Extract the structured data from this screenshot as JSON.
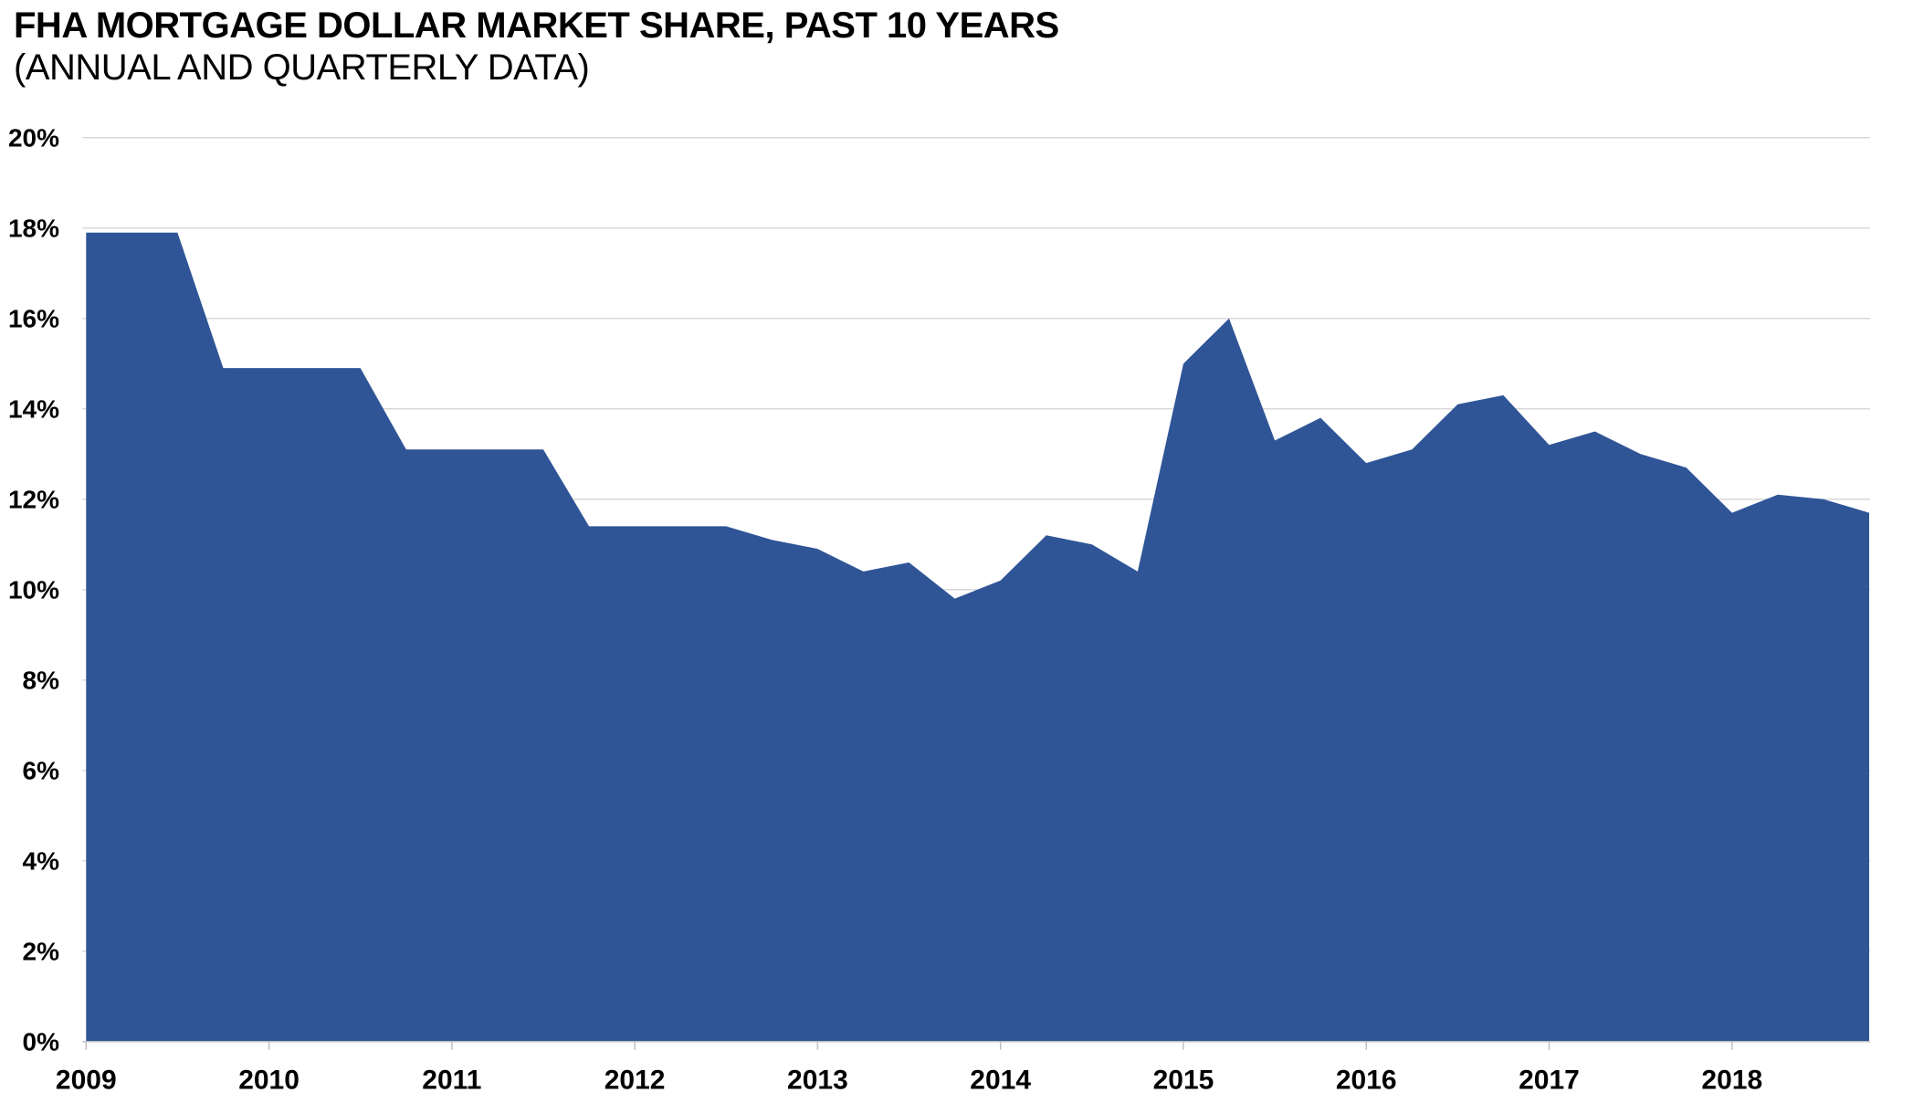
{
  "chart_data": {
    "type": "area",
    "title": "FHA MORTGAGE DOLLAR MARKET SHARE, PAST 10 YEARS",
    "subtitle": "(ANNUAL AND QUARTERLY DATA)",
    "xlabel": "",
    "ylabel": "",
    "ylim": [
      0,
      20
    ],
    "y_tick_step": 2,
    "y_tick_labels": [
      "0%",
      "2%",
      "4%",
      "6%",
      "8%",
      "10%",
      "12%",
      "14%",
      "16%",
      "18%",
      "20%"
    ],
    "x_tick_labels": [
      "2009",
      "2010",
      "2011",
      "2012",
      "2013",
      "2014",
      "2015",
      "2016",
      "2017",
      "2018"
    ],
    "grid": "horizontal",
    "legend_position": "none",
    "series": [
      {
        "name": "FHA mortgage dollar market share",
        "x": [
          "2009 Q1",
          "2009 Q2",
          "2009 Q3",
          "2009 Q4",
          "2010 Q1",
          "2010 Q2",
          "2010 Q3",
          "2010 Q4",
          "2011 Q1",
          "2011 Q2",
          "2011 Q3",
          "2011 Q4",
          "2012 Q1",
          "2012 Q2",
          "2012 Q3",
          "2012 Q4",
          "2013 Q1",
          "2013 Q2",
          "2013 Q3",
          "2013 Q4",
          "2014 Q1",
          "2014 Q2",
          "2014 Q3",
          "2014 Q4",
          "2015 Q1",
          "2015 Q2",
          "2015 Q3",
          "2015 Q4",
          "2016 Q1",
          "2016 Q2",
          "2016 Q3",
          "2016 Q4",
          "2017 Q1",
          "2017 Q2",
          "2017 Q3",
          "2017 Q4",
          "2018 Q1",
          "2018 Q2",
          "2018 Q3",
          "2018 Q4"
        ],
        "values": [
          17.9,
          17.9,
          17.9,
          14.9,
          14.9,
          14.9,
          14.9,
          13.1,
          13.1,
          13.1,
          13.1,
          11.4,
          11.4,
          11.4,
          11.4,
          11.1,
          10.9,
          10.4,
          10.6,
          9.8,
          10.2,
          11.2,
          11.0,
          10.4,
          15.0,
          16.0,
          13.3,
          13.8,
          12.8,
          13.1,
          14.1,
          14.3,
          13.2,
          13.5,
          13.0,
          12.7,
          11.7,
          12.1,
          12.0,
          11.7
        ]
      }
    ],
    "colors": {
      "area": "#2F5597",
      "gridline": "#D9D9D9",
      "axis": "#BFBFBF",
      "text": "#000000",
      "background": "#FFFFFF"
    }
  }
}
